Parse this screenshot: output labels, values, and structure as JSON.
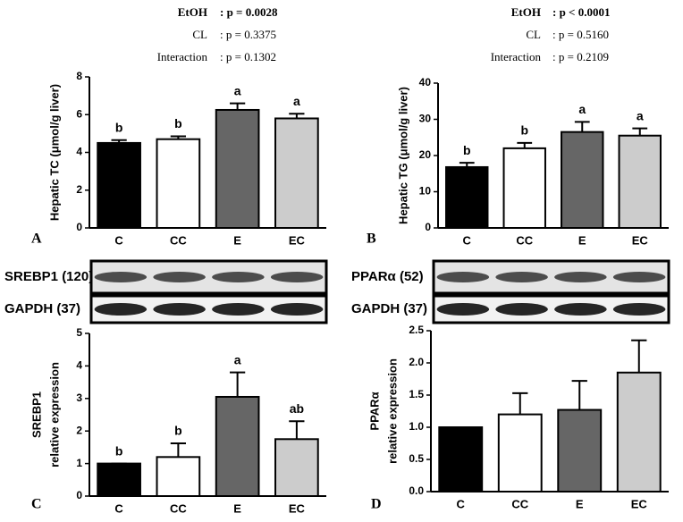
{
  "chart_data": [
    {
      "type": "bar",
      "panel": "A",
      "ylabel": "Hepatic TC (μmol/g liver)",
      "stats": [
        [
          "EtOH",
          ": p = 0.0028"
        ],
        [
          "CL",
          ": p = 0.3375"
        ],
        [
          "Interaction",
          ": p = 0.1302"
        ]
      ],
      "categories": [
        "C",
        "CC",
        "E",
        "EC"
      ],
      "values": [
        4.5,
        4.7,
        6.25,
        5.8
      ],
      "errors": [
        0.15,
        0.15,
        0.35,
        0.25
      ],
      "letters": [
        "b",
        "b",
        "a",
        "a"
      ],
      "colors": [
        "#000000",
        "#ffffff",
        "#666666",
        "#cccccc"
      ],
      "ylim": [
        0,
        8
      ],
      "yticks": [
        0,
        2,
        4,
        6,
        8
      ]
    },
    {
      "type": "bar",
      "panel": "B",
      "ylabel": "Hepatic TG (μmol/g liver)",
      "stats": [
        [
          "EtOH",
          ": p < 0.0001"
        ],
        [
          "CL",
          ": p = 0.5160"
        ],
        [
          "Interaction",
          ": p = 0.2109"
        ]
      ],
      "categories": [
        "C",
        "CC",
        "E",
        "EC"
      ],
      "values": [
        16.8,
        22,
        26.5,
        25.5
      ],
      "errors": [
        1.2,
        1.5,
        2.8,
        2
      ],
      "letters": [
        "b",
        "b",
        "a",
        "a"
      ],
      "colors": [
        "#000000",
        "#ffffff",
        "#666666",
        "#cccccc"
      ],
      "ylim": [
        0,
        40
      ],
      "yticks": [
        0,
        10,
        20,
        30,
        40
      ]
    },
    {
      "type": "bar",
      "panel": "C",
      "ylabel": [
        "SREBP1",
        "relative expression"
      ],
      "blots": [
        "SREBP1 (120)",
        "GAPDH (37)"
      ],
      "categories": [
        "C",
        "CC",
        "E",
        "EC"
      ],
      "values": [
        1,
        1.2,
        3.05,
        1.75
      ],
      "errors": [
        0,
        0.42,
        0.75,
        0.55
      ],
      "letters": [
        "b",
        "b",
        "a",
        "ab"
      ],
      "colors": [
        "#000000",
        "#ffffff",
        "#666666",
        "#cccccc"
      ],
      "ylim": [
        0,
        5
      ],
      "yticks": [
        0,
        1,
        2,
        3,
        4,
        5
      ]
    },
    {
      "type": "bar",
      "panel": "D",
      "ylabel": [
        "PPARα",
        "relative expression"
      ],
      "blots": [
        "PPARα (52)",
        "GAPDH (37)"
      ],
      "categories": [
        "C",
        "CC",
        "E",
        "EC"
      ],
      "values": [
        1.0,
        1.2,
        1.27,
        1.85
      ],
      "errors": [
        0,
        0.33,
        0.45,
        0.5
      ],
      "colors": [
        "#000000",
        "#ffffff",
        "#666666",
        "#cccccc"
      ],
      "ylim": [
        0,
        2.5
      ],
      "yticks": [
        {
          "value": 0,
          "label": "0.0"
        },
        0.5,
        {
          "value": 1,
          "label": "1.0"
        },
        1.5,
        {
          "value": 2,
          "label": "2.0"
        },
        2.5
      ]
    }
  ]
}
